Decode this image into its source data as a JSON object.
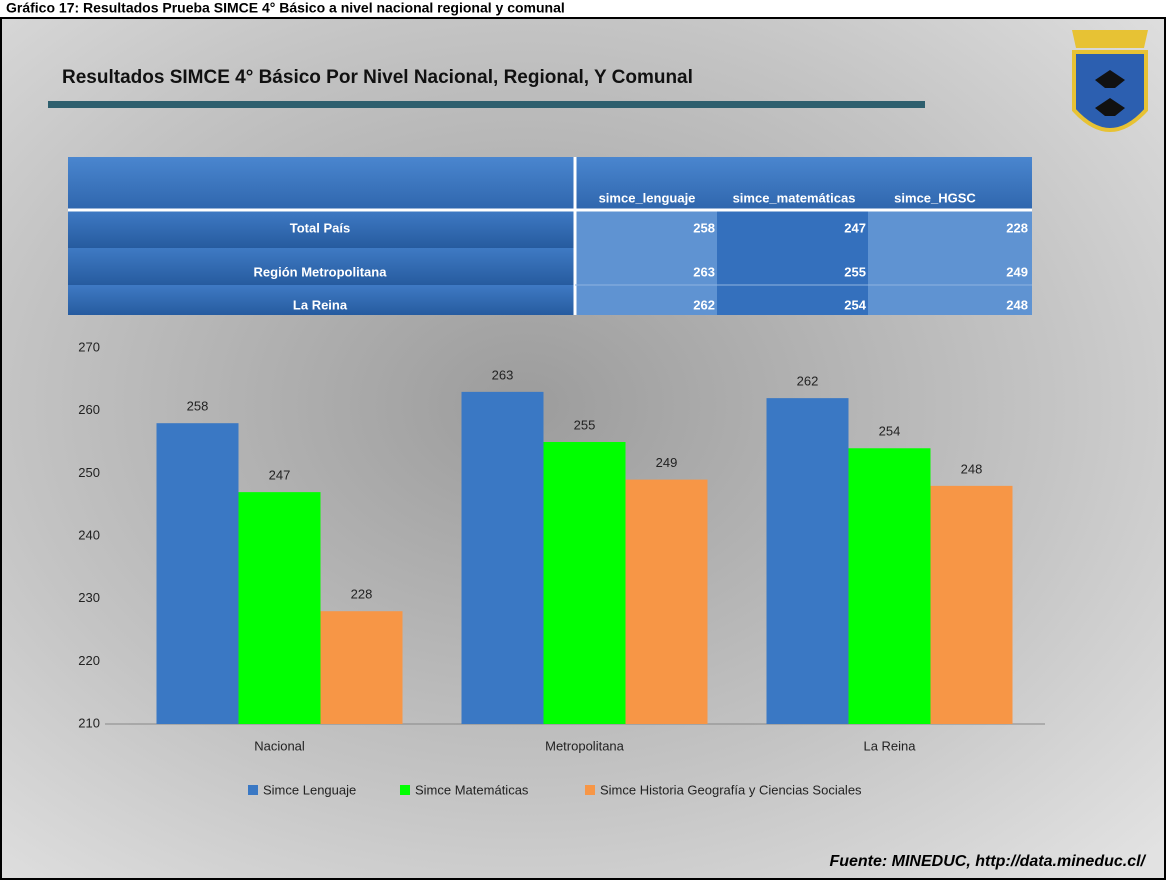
{
  "caption": "Gráfico 17: Resultados Prueba SIMCE 4° Básico a nivel nacional regional y comunal",
  "slide_title": "Resultados SIMCE 4° Básico Por Nivel Nacional, Regional, Y Comunal",
  "table": {
    "columns": [
      "simce_lenguaje",
      "simce_matemáticas",
      "simce_HGSC"
    ],
    "rows": [
      [
        "Total País",
        258,
        247,
        228
      ],
      [
        "Región Metropolitana",
        263,
        255,
        249
      ],
      [
        "La Reina",
        262,
        254,
        248
      ]
    ]
  },
  "source": "Fuente: MINEDUC, http://data.mineduc.cl/",
  "chart_data": {
    "type": "bar",
    "categories": [
      "Nacional",
      "Metropolitana",
      "La Reina"
    ],
    "series": [
      {
        "name": "Simce Lenguaje",
        "color": "#3a78c4",
        "values": [
          258,
          263,
          262
        ]
      },
      {
        "name": "Simce Matemáticas",
        "color": "#00ff00",
        "values": [
          247,
          255,
          254
        ]
      },
      {
        "name": "Simce Historia Geografía y Ciencias Sociales",
        "color": "#f79646",
        "values": [
          228,
          249,
          248
        ]
      }
    ],
    "ylim": [
      210,
      270
    ],
    "yticks": [
      210,
      220,
      230,
      240,
      250,
      260,
      270
    ],
    "grid": false
  }
}
